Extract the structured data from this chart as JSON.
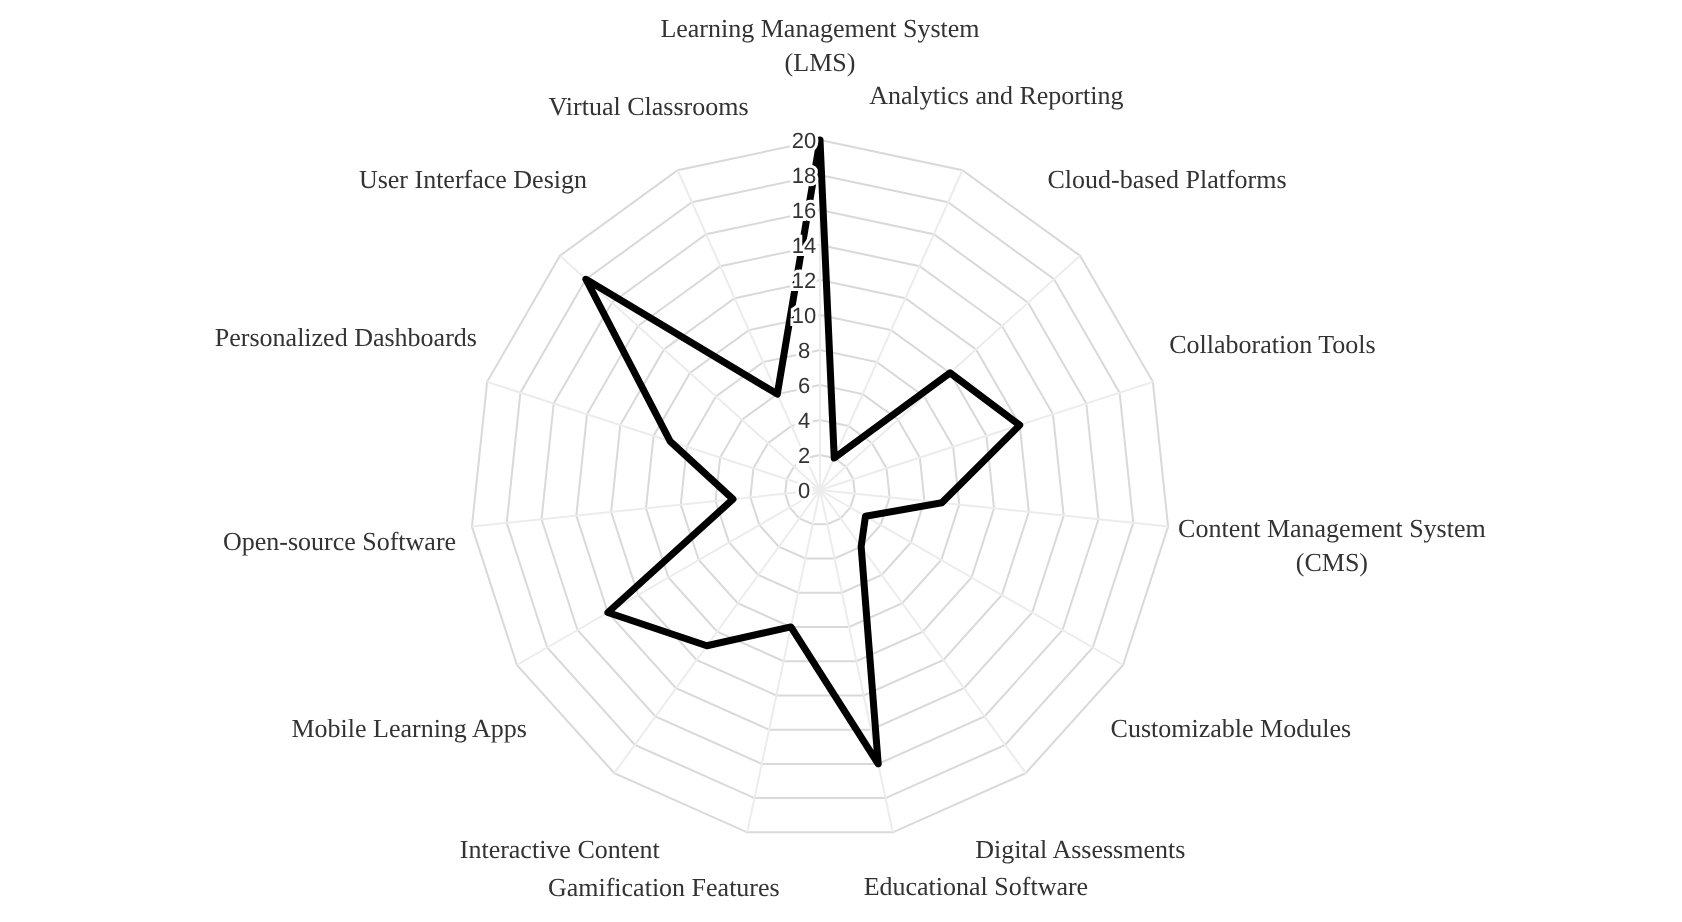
{
  "chart_data": {
    "type": "radar",
    "categories": [
      "Learning Management System (LMS)",
      "Analytics and Reporting",
      "Cloud-based Platforms",
      "Collaboration Tools",
      "Content Management System (CMS)",
      "Customizable Modules",
      "Digital Assessments",
      "Educational Software",
      "Gamification Features",
      "Interactive Content",
      "Mobile Learning Apps",
      "Open-source Software",
      "Personalized Dashboards",
      "User Interface Design",
      "Virtual Classrooms"
    ],
    "series": [
      {
        "color": "#000000",
        "values": [
          20,
          2,
          10,
          12,
          7,
          3,
          4,
          16,
          8,
          11,
          14,
          5,
          9,
          18,
          6
        ]
      }
    ],
    "ylim": [
      0,
      20
    ],
    "yticks": [
      0,
      2,
      4,
      6,
      8,
      10,
      12,
      14,
      16,
      18,
      20
    ],
    "grid": true,
    "marker": "none",
    "line_style": "solid"
  }
}
